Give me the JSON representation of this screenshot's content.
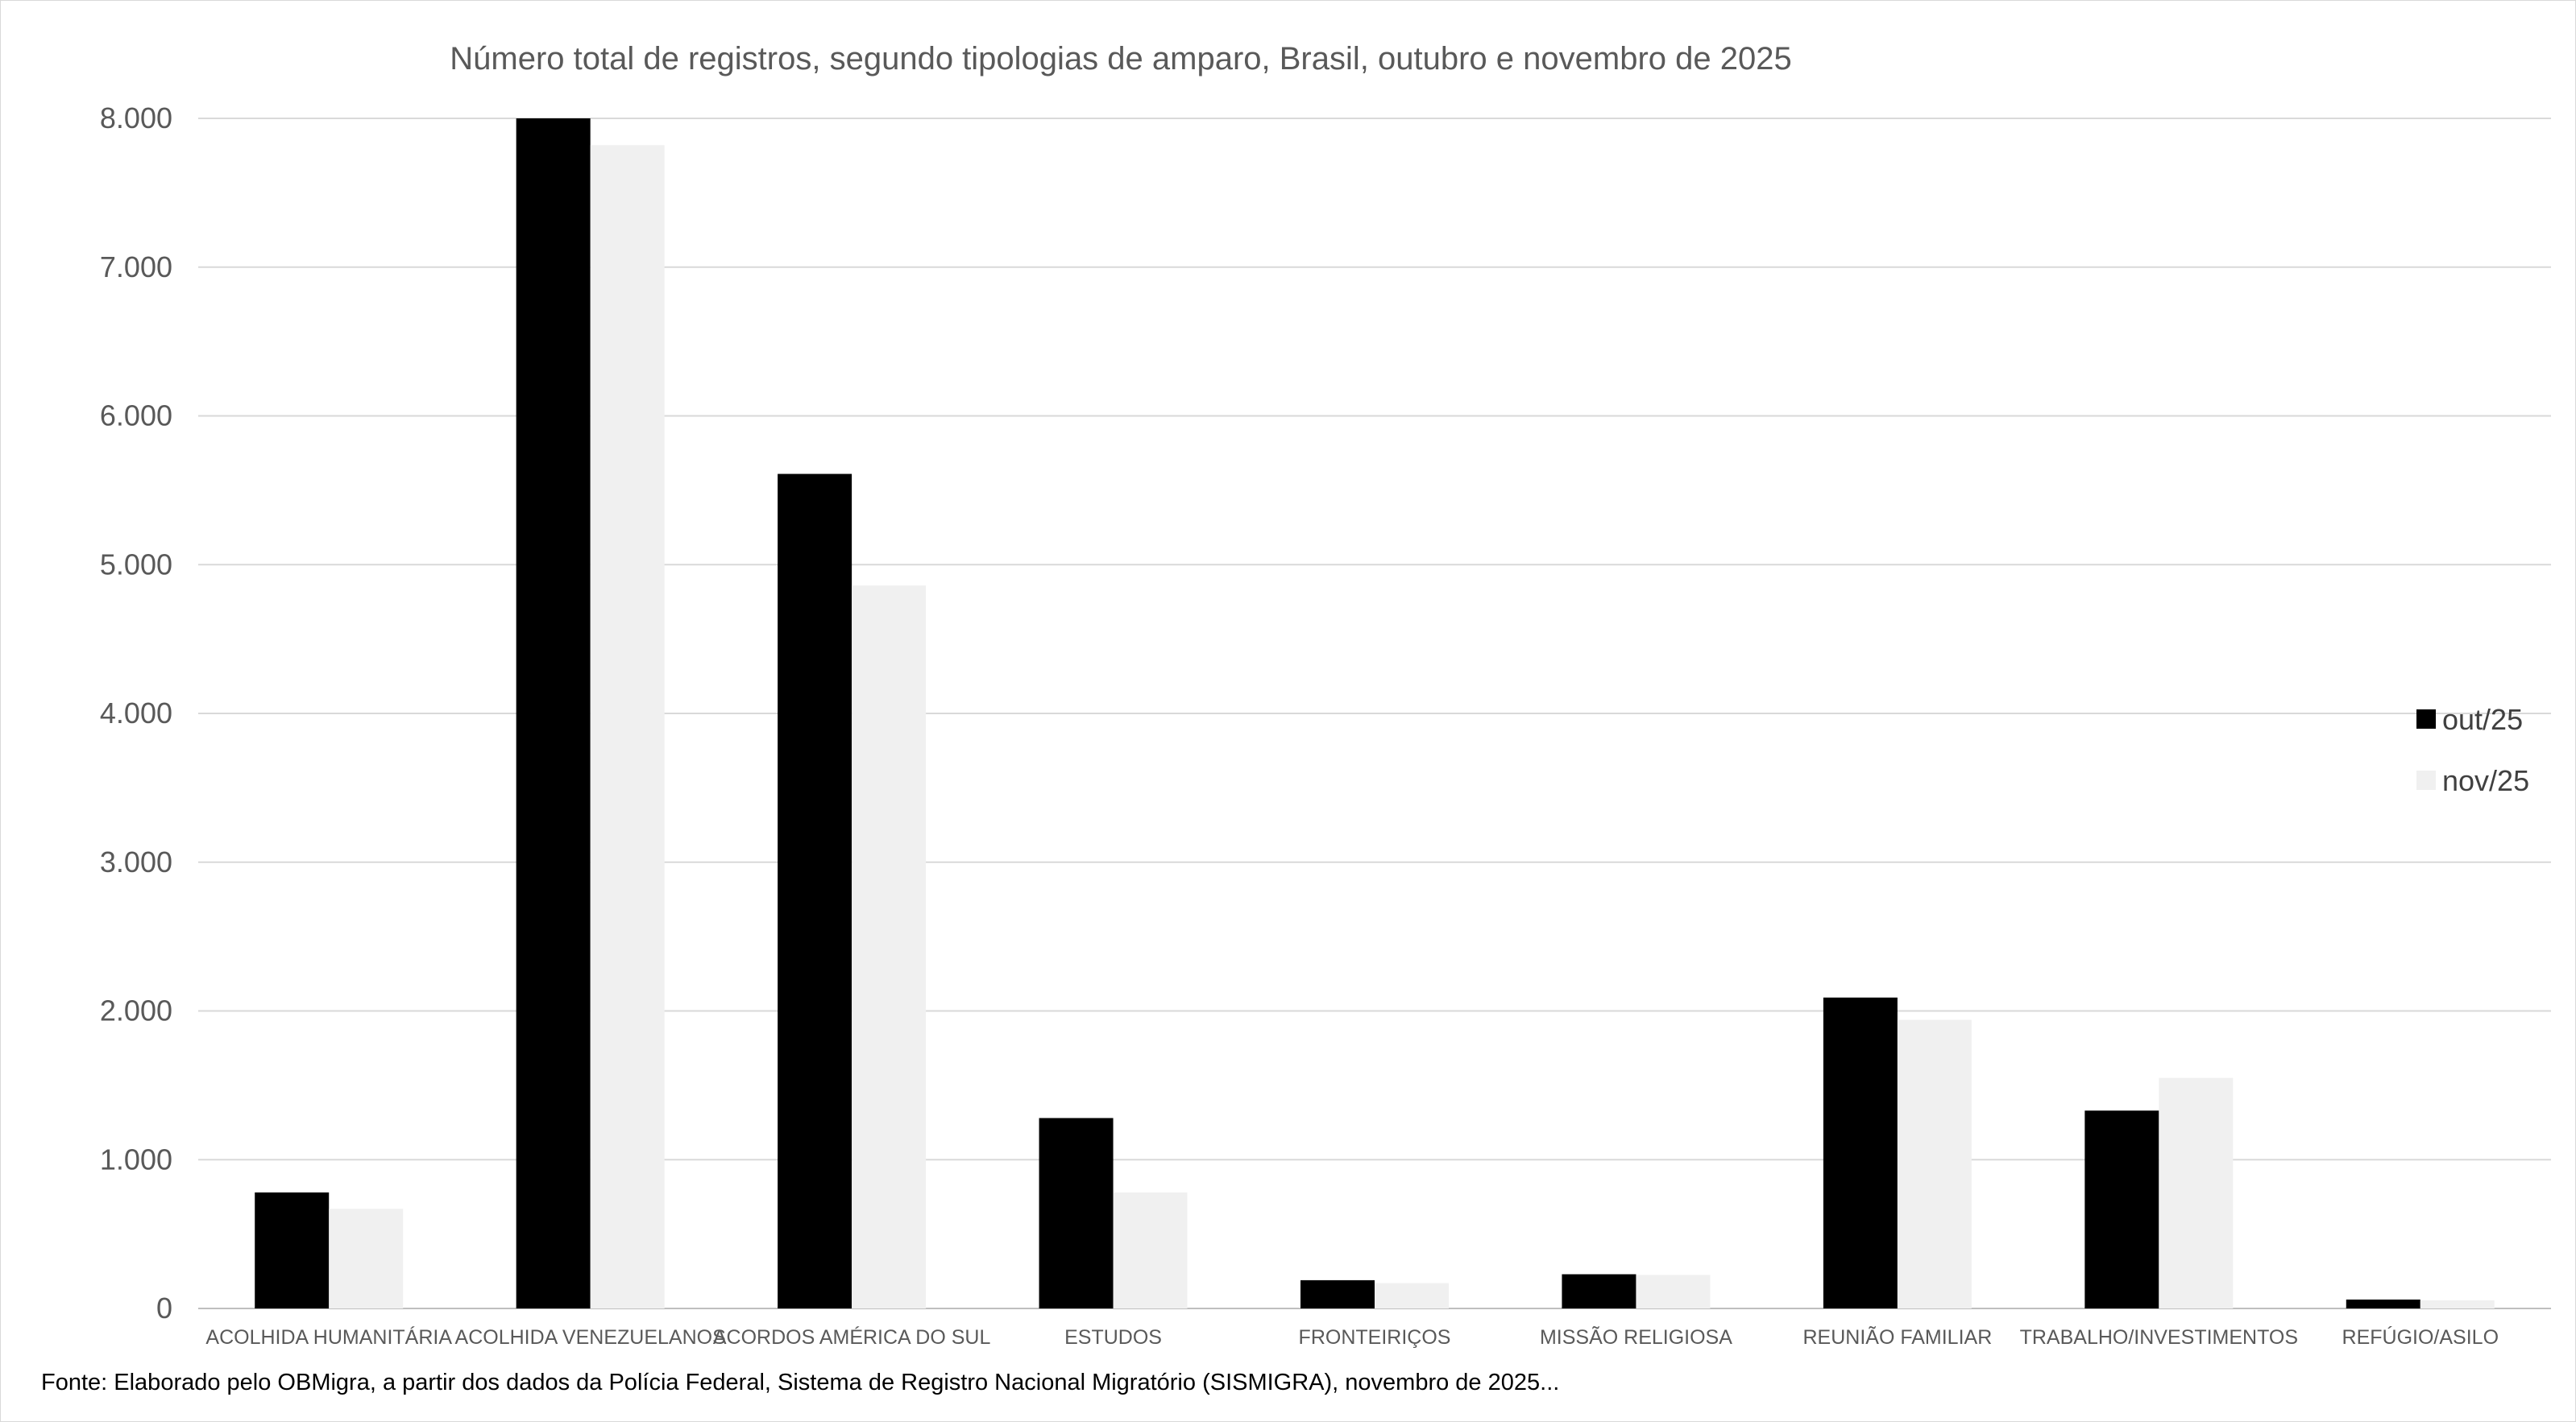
{
  "chart_data": {
    "type": "bar",
    "title": "Número total de registros, segundo tipologias de amparo, Brasil, outubro e novembro de 2025",
    "categories": [
      "ACOLHIDA HUMANITÁRIA",
      "ACOLHIDA VENEZUELANOS",
      "ACORDOS AMÉRICA DO SUL",
      "ESTUDOS",
      "FRONTEIRIÇOS",
      "MISSÃO RELIGIOSA",
      "REUNIÃO FAMILIAR",
      "TRABALHO/INVESTIMENTOS",
      "REFÚGIO/ASILO"
    ],
    "series": [
      {
        "name": "out/25",
        "color": "#000000",
        "values": [
          780,
          8000,
          5610,
          1280,
          190,
          230,
          2090,
          1330,
          60
        ]
      },
      {
        "name": "nov/25",
        "color": "#f0f0f0",
        "values": [
          670,
          7820,
          4860,
          780,
          170,
          225,
          1940,
          1550,
          55
        ]
      }
    ],
    "ylim": [
      0,
      8000
    ],
    "yticks": [
      0,
      1000,
      2000,
      3000,
      4000,
      5000,
      6000,
      7000,
      8000
    ],
    "ytick_labels": [
      "0",
      "1.000",
      "2.000",
      "3.000",
      "4.000",
      "5.000",
      "6.000",
      "7.000",
      "8.000"
    ],
    "grid": true,
    "legend_position": "right",
    "xlabel": "",
    "ylabel": ""
  },
  "footer": {
    "source": "Fonte: Elaborado pelo OBMigra,  a partir dos dados da Polícia Federal, Sistema de Registro Nacional Migratório (SISMIGRA), novembro de 2025..."
  }
}
